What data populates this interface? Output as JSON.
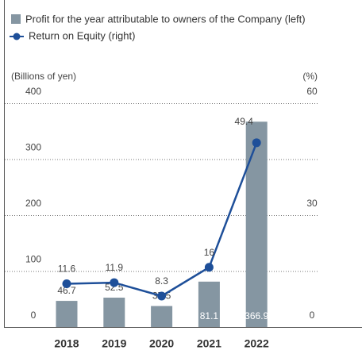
{
  "chart_data": {
    "type": "bar-line",
    "series": [
      {
        "name": "Profit for the year attributable to owners of the Company (left)",
        "type": "bar",
        "color": "#8596a2",
        "values": [
          46.7,
          52.5,
          37.5,
          81.1,
          366.9
        ]
      },
      {
        "name": "Return on Equity (right)",
        "type": "line",
        "axis": "y2",
        "color": "#1e4f99",
        "values": [
          11.6,
          11.9,
          8.3,
          16.0,
          49.4
        ]
      }
    ],
    "categories": [
      "2018",
      "2019",
      "2020",
      "2021",
      "2022"
    ],
    "y_label": "(Billions of yen)",
    "y2_label": "(%)",
    "ylim": [
      0,
      400
    ],
    "yticks": [
      0,
      100,
      200,
      300,
      400
    ],
    "y2lim": [
      0,
      60
    ],
    "y2ticks": [
      0,
      30,
      60
    ],
    "grid": true
  }
}
